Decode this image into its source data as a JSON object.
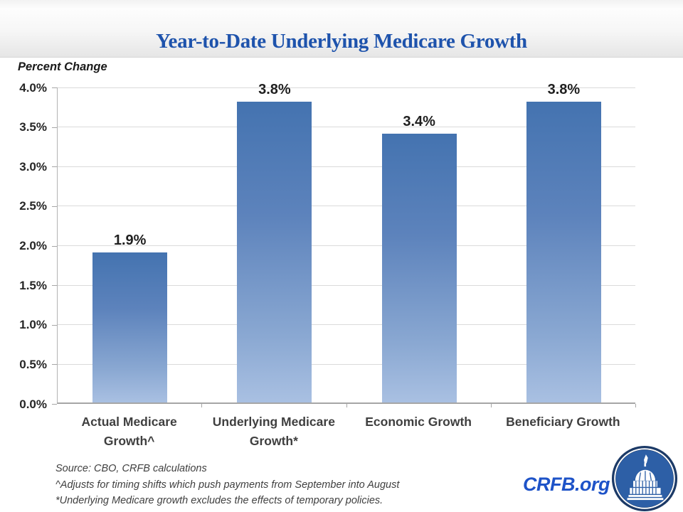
{
  "header": {
    "title": "Year-to-Date Underlying Medicare Growth"
  },
  "chart_data": {
    "type": "bar",
    "title": "Year-to-Date Underlying Medicare Growth",
    "ylabel": "Percent Change",
    "xlabel": "",
    "categories": [
      "Actual Medicare Growth^",
      "Underlying Medicare Growth*",
      "Economic Growth",
      "Beneficiary Growth"
    ],
    "values": [
      1.9,
      3.8,
      3.4,
      3.8
    ],
    "data_labels": [
      "1.9%",
      "3.8%",
      "3.4%",
      "3.8%"
    ],
    "ylim": [
      0,
      4
    ],
    "yticks": [
      {
        "v": 0.0,
        "label": "0.0%"
      },
      {
        "v": 0.5,
        "label": "0.5%"
      },
      {
        "v": 1.0,
        "label": "1.0%"
      },
      {
        "v": 1.5,
        "label": "1.5%"
      },
      {
        "v": 2.0,
        "label": "2.0%"
      },
      {
        "v": 2.5,
        "label": "2.5%"
      },
      {
        "v": 3.0,
        "label": "3.0%"
      },
      {
        "v": 3.5,
        "label": "3.5%"
      },
      {
        "v": 4.0,
        "label": "4.0%"
      }
    ],
    "grid": true,
    "legend": "none"
  },
  "footer": {
    "lines": [
      "Source: CBO, CRFB calculations",
      "^Adjusts for timing shifts which push payments from September into August",
      "*Underlying Medicare growth excludes the effects of temporary policies."
    ]
  },
  "brand": {
    "label": "CRFB.org",
    "logo": "capitol-dome-icon"
  },
  "colors": {
    "title_blue": "#1E53AC",
    "bar_top": "#4473B0",
    "bar_bottom": "#A9C0E2",
    "gridline": "#DADADA",
    "axis": "#A6A6A6",
    "data_label": "#1F1F1F",
    "category_label": "#3F3F3F",
    "footer_text": "#3F3F3F",
    "brand_blue": "#1E53C8",
    "logo_ring": "#1C3A67",
    "logo_fill": "#2D5FA6"
  }
}
